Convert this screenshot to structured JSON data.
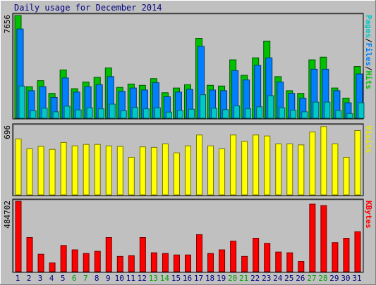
{
  "title": "Daily usage for December 2014",
  "chart_data": [
    {
      "type": "bar",
      "panel": "hits-files-pages",
      "categories": [
        "1",
        "2",
        "3",
        "4",
        "5",
        "6",
        "7",
        "8",
        "9",
        "10",
        "11",
        "12",
        "13",
        "14",
        "15",
        "16",
        "17",
        "18",
        "19",
        "20",
        "21",
        "22",
        "23",
        "24",
        "25",
        "26",
        "27",
        "28",
        "29",
        "30",
        "31"
      ],
      "y_max_label": "7656",
      "ylim": [
        0,
        7656
      ],
      "right_label_parts": [
        {
          "text": "Pages",
          "color": "#00C8C8"
        },
        {
          "text": "/",
          "color": "#000000"
        },
        {
          "text": "Files",
          "color": "#0080FF"
        },
        {
          "text": "/",
          "color": "#000000"
        },
        {
          "text": "Hits",
          "color": "#00C000"
        }
      ],
      "series": [
        {
          "name": "Hits",
          "color": "#00C000",
          "values": [
            7656,
            2350,
            2800,
            1850,
            3600,
            2200,
            2700,
            3050,
            3750,
            2300,
            2550,
            2450,
            2950,
            1900,
            2250,
            2500,
            5950,
            2450,
            2400,
            4350,
            3200,
            4500,
            5750,
            3100,
            2050,
            1850,
            4350,
            4550,
            2250,
            1500,
            3850
          ]
        },
        {
          "name": "Files",
          "color": "#0080FF",
          "values": [
            6650,
            2050,
            2350,
            1550,
            3000,
            1950,
            2350,
            2500,
            3100,
            2000,
            2250,
            2100,
            2650,
            1600,
            1950,
            2150,
            5350,
            2100,
            2050,
            3550,
            2850,
            3950,
            4500,
            2700,
            1850,
            1500,
            3650,
            3650,
            2050,
            1150,
            3300
          ]
        },
        {
          "name": "Pages",
          "color": "#00C8C8",
          "values": [
            2400,
            550,
            750,
            480,
            900,
            620,
            780,
            700,
            1050,
            550,
            800,
            700,
            780,
            460,
            580,
            670,
            1750,
            740,
            640,
            920,
            700,
            850,
            1680,
            780,
            600,
            480,
            1200,
            1200,
            570,
            350,
            1150
          ]
        }
      ],
      "weekend_days": [
        6,
        7,
        13,
        14,
        20,
        21,
        27,
        28
      ]
    },
    {
      "type": "bar",
      "panel": "visits",
      "categories": [
        "1",
        "2",
        "3",
        "4",
        "5",
        "6",
        "7",
        "8",
        "9",
        "10",
        "11",
        "12",
        "13",
        "14",
        "15",
        "16",
        "17",
        "18",
        "19",
        "20",
        "21",
        "22",
        "23",
        "24",
        "25",
        "26",
        "27",
        "28",
        "29",
        "30",
        "31"
      ],
      "y_max_label": "696",
      "ylim": [
        0,
        696
      ],
      "right_label_parts": [
        {
          "text": "Visits",
          "color": "#E8E800"
        }
      ],
      "series": [
        {
          "name": "Visits",
          "color": "#FFFF00",
          "values": [
            565,
            465,
            490,
            460,
            530,
            495,
            510,
            510,
            495,
            490,
            380,
            485,
            480,
            515,
            425,
            495,
            605,
            495,
            465,
            605,
            540,
            605,
            595,
            515,
            515,
            505,
            635,
            690,
            515,
            380,
            650
          ]
        }
      ]
    },
    {
      "type": "bar",
      "panel": "kbytes",
      "categories": [
        "1",
        "2",
        "3",
        "4",
        "5",
        "6",
        "7",
        "8",
        "9",
        "10",
        "11",
        "12",
        "13",
        "14",
        "15",
        "16",
        "17",
        "18",
        "19",
        "20",
        "21",
        "22",
        "23",
        "24",
        "25",
        "26",
        "27",
        "28",
        "29",
        "30",
        "31"
      ],
      "y_max_label": "484702",
      "ylim": [
        0,
        484702
      ],
      "right_label_parts": [
        {
          "text": "KBytes",
          "color": "#FF0000"
        }
      ],
      "series": [
        {
          "name": "KBytes",
          "color": "#FF0000",
          "values": [
            484702,
            235000,
            120000,
            60000,
            180000,
            150000,
            125000,
            140000,
            235000,
            105000,
            110000,
            235000,
            130000,
            125000,
            115000,
            115000,
            255000,
            125000,
            150000,
            210000,
            105000,
            230000,
            195000,
            135000,
            130000,
            70000,
            465000,
            455000,
            200000,
            230000,
            275000
          ]
        }
      ]
    }
  ],
  "x_label_colors": {
    "weekday": "#000080",
    "weekend": "#00A000"
  }
}
